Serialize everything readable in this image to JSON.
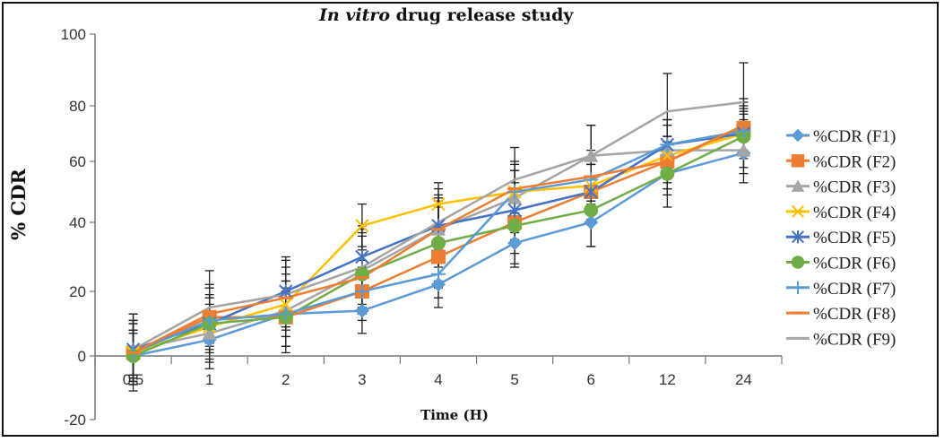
{
  "chart_data": {
    "type": "line",
    "title_italic": "In vitro",
    "title_rest": " drug release study",
    "xlabel": "Time (H)",
    "ylabel": "% CDR",
    "categories": [
      "0.5",
      "1",
      "2",
      "3",
      "4",
      "5",
      "6",
      "12",
      "24"
    ],
    "yticks": [
      "100",
      "80",
      "60",
      "40",
      "20",
      "0",
      "-20"
    ],
    "ylim": [
      -20,
      100
    ],
    "legend_position": "right",
    "error_bars": true,
    "series": [
      {
        "name": "%CDR (F1)",
        "marker": "diamond",
        "color": "#5b9bd5",
        "values": [
          0,
          5,
          13,
          14,
          22,
          34,
          40,
          56,
          63
        ]
      },
      {
        "name": "%CDR (F2)",
        "marker": "square",
        "color": "#ed7d31",
        "values": [
          1,
          12,
          12,
          20,
          30,
          40,
          50,
          60,
          72
        ]
      },
      {
        "name": "%CDR (F3)",
        "marker": "triangle",
        "color": "#a5a5a5",
        "values": [
          2,
          7,
          14,
          26,
          38,
          48,
          62,
          64,
          64
        ]
      },
      {
        "name": "%CDR (F4)",
        "marker": "x",
        "color": "#ffc000",
        "values": [
          1,
          9,
          16,
          39,
          46,
          50,
          52,
          62,
          70
        ]
      },
      {
        "name": "%CDR (F5)",
        "marker": "star",
        "color": "#4472c4",
        "values": [
          2,
          10,
          20,
          30,
          39,
          44,
          50,
          66,
          70
        ]
      },
      {
        "name": "%CDR (F6)",
        "marker": "circle",
        "color": "#70ad47",
        "values": [
          0,
          10,
          12,
          25,
          34,
          39,
          44,
          56,
          69
        ]
      },
      {
        "name": "%CDR (F7)",
        "marker": "plus",
        "color": "#5b9bd5",
        "values": [
          1,
          11,
          13,
          20,
          25,
          50,
          54,
          66,
          71
        ]
      },
      {
        "name": "%CDR (F8)",
        "marker": "dash",
        "color": "#ed7d31",
        "values": [
          1,
          13,
          18,
          24,
          38,
          51,
          55,
          60,
          73
        ]
      },
      {
        "name": "%CDR (F9)",
        "marker": "line",
        "color": "#a5a5a5",
        "values": [
          2,
          15,
          19,
          27,
          40,
          54,
          62,
          78,
          81
        ]
      }
    ]
  }
}
